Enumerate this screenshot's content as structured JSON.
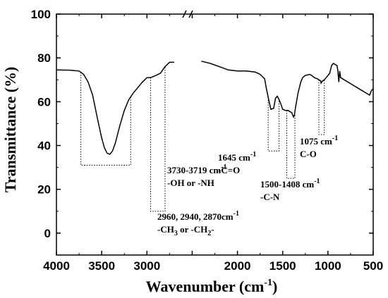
{
  "chart_data": {
    "type": "line",
    "title": "",
    "xlabel": {
      "main": "Wavenumber (cm",
      "sup": "-1",
      "tail": ")"
    },
    "ylabel": "Transmittance (%)",
    "xlim": [
      4000,
      500
    ],
    "ylim": [
      -10,
      100
    ],
    "x_ticks": [
      4000,
      3500,
      3000,
      2500,
      2000,
      1500,
      1000,
      500
    ],
    "x_tick_labels": [
      "4000",
      "3500",
      "3000",
      "",
      "2000",
      "1500",
      "1000",
      "500"
    ],
    "y_ticks": [
      0,
      20,
      40,
      60,
      80,
      100
    ],
    "y_tick_labels": [
      "0",
      "20",
      "40",
      "60",
      "80",
      "100"
    ],
    "axis_break": {
      "axis": "x",
      "between": [
        2700,
        2400
      ]
    },
    "grid": false,
    "series": [
      {
        "x": [
          4000,
          3850,
          3750,
          3700,
          3650,
          3600,
          3550,
          3500,
          3470,
          3440,
          3410,
          3380,
          3350,
          3300,
          3250,
          3200,
          3150,
          3100,
          3050,
          3000,
          2960,
          2900,
          2850,
          2800,
          2750,
          2700,
          2400,
          2300,
          2200,
          2100,
          2000,
          1900,
          1800,
          1750,
          1700,
          1680,
          1650,
          1630,
          1600,
          1580,
          1560,
          1540,
          1520,
          1500,
          1470,
          1440,
          1420,
          1400,
          1390,
          1380,
          1370,
          1360,
          1330,
          1300,
          1280,
          1250,
          1200,
          1180,
          1150,
          1120,
          1100,
          1080,
          1075,
          1060,
          1040,
          1020,
          1000,
          980,
          960,
          940,
          920,
          900,
          890,
          880,
          870,
          860,
          840,
          820,
          800,
          780,
          760,
          740,
          720,
          700,
          680,
          660,
          640,
          620,
          600,
          580,
          560,
          540,
          520,
          500
        ],
        "y": [
          74.5,
          74.4,
          74,
          72.5,
          69,
          63,
          53,
          43.5,
          39,
          36.5,
          36,
          37.5,
          41,
          49,
          56,
          61,
          64,
          66.5,
          69,
          71,
          71,
          72,
          73,
          76,
          78,
          78,
          78.5,
          77.5,
          76,
          74.5,
          74,
          74,
          73.5,
          72.5,
          70.5,
          66,
          60,
          56.5,
          57,
          61.5,
          62.5,
          61,
          59,
          56.5,
          56,
          56,
          55.5,
          55,
          54,
          53,
          54,
          57,
          64,
          69,
          71,
          72,
          72.5,
          72,
          71,
          70.5,
          70,
          69.5,
          68.5,
          69.5,
          70,
          71,
          72,
          73,
          76.5,
          77.5,
          77,
          76.5,
          74,
          69,
          74,
          71,
          70.5,
          70,
          69.5,
          69,
          68.5,
          68,
          67.5,
          67,
          66.5,
          66,
          65.5,
          65,
          64.5,
          64,
          63.5,
          63,
          65,
          66
        ]
      }
    ],
    "annotations": [
      {
        "lines": [
          "3730-3719 cm|-1",
          "-OH or -NH"
        ]
      },
      {
        "lines": [
          "2960, 2940, 2870cm|-1",
          "-CH|3| or -CH|2|-"
        ]
      },
      {
        "lines": [
          "1645 cm|-1",
          "-C=O"
        ]
      },
      {
        "lines": [
          "1500-1408 cm|-1",
          "-C-N"
        ]
      },
      {
        "lines": [
          "1075 cm|-1",
          "C-O"
        ]
      }
    ],
    "bracket_guides": [
      {
        "x1": 3730,
        "x2": 3180,
        "y": 31
      },
      {
        "x1": 2960,
        "x2": 2800,
        "y": 10
      },
      {
        "x1": 1660,
        "x2": 1540,
        "y": 37.5
      },
      {
        "x1": 1455,
        "x2": 1365,
        "y": 25
      },
      {
        "x1": 1100,
        "x2": 1040,
        "y": 45
      }
    ]
  }
}
